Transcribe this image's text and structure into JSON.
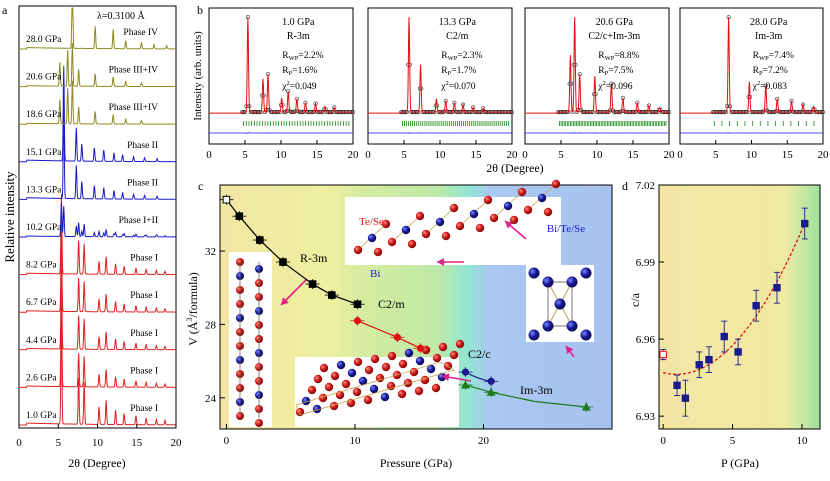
{
  "panel_labels": {
    "a": "a",
    "b": "b",
    "c": "c",
    "d": "d"
  },
  "colors": {
    "phase1": "#e02020",
    "phase2": "#1a1acc",
    "phase34": "#8f8a1e",
    "fit_red": "#e01010",
    "diff_blue": "#1a1aff",
    "tick_green": "#1a8a1a",
    "c_r3m": "#000000",
    "c_c2m": "#e01010",
    "c_c2c": "#1a1a8f",
    "c_im3m": "#1a7a1a",
    "d_points": "#1a1a8f",
    "d_fit": "#e01010"
  },
  "chart_data": [
    {
      "type": "line",
      "panel": "a",
      "xlabel": "2θ (Degree)",
      "ylabel": "Relative intensity",
      "xlim": [
        0,
        20
      ],
      "xticks": [
        "0",
        "5",
        "10",
        "15",
        "20"
      ],
      "annotation": "λ=0.3100 Å",
      "series": [
        {
          "pressure": "1.0 GPa",
          "phase": "Phase I"
        },
        {
          "pressure": "2.6 GPa",
          "phase": "Phase I"
        },
        {
          "pressure": "4.4 GPa",
          "phase": "Phase I"
        },
        {
          "pressure": "6.7 GPa",
          "phase": "Phase I"
        },
        {
          "pressure": "8.2 GPa",
          "phase": "Phase I"
        },
        {
          "pressure": "10.2 GPa",
          "phase": "Phase I+II"
        },
        {
          "pressure": "13.3 GPa",
          "phase": "Phase II"
        },
        {
          "pressure": "15.1 GPa",
          "phase": "Phase II"
        },
        {
          "pressure": "18.6 GPa",
          "phase": "Phase III+IV"
        },
        {
          "pressure": "20.6 GPa",
          "phase": "Phase III+IV"
        },
        {
          "pressure": "28.0 GPa",
          "phase": "Phase IV"
        }
      ]
    },
    {
      "type": "line",
      "panel": "b",
      "ylabel": "Intensity (arb. units)",
      "xlabel": "2θ (Degree)",
      "xlim": [
        0,
        20
      ],
      "xticks": [
        "0",
        "5",
        "10",
        "15",
        "20"
      ],
      "subplots": [
        {
          "pressure": "1.0 GPa",
          "phase": "R-3m",
          "rwp": "R",
          "rwp_sub": "WP",
          "rwp_val": "=2.2%",
          "rp": "R",
          "rp_sub": "P",
          "rp_val": "=1.6%",
          "chi": "χ",
          "chi_sup": "2",
          "chi_val": "=0.049"
        },
        {
          "pressure": "13.3 GPa",
          "phase": "C2/m",
          "rwp": "R",
          "rwp_sub": "WP",
          "rwp_val": "=2.3%",
          "rp": "R",
          "rp_sub": "P",
          "rp_val": "=1.7%",
          "chi": "χ",
          "chi_sup": "2",
          "chi_val": "=0.070"
        },
        {
          "pressure": "20.6 GPa",
          "phase": "C2/c+Im-3m",
          "rwp": "R",
          "rwp_sub": "WP",
          "rwp_val": "=8.8%",
          "rp": "R",
          "rp_sub": "P",
          "rp_val": "=7.5%",
          "chi": "χ",
          "chi_sup": "2",
          "chi_val": "=0.096"
        },
        {
          "pressure": "28.0 GPa",
          "phase": "Im-3m",
          "rwp": "R",
          "rwp_sub": "WP",
          "rwp_val": "=7.4%",
          "rp": "R",
          "rp_sub": "P",
          "rp_val": "=7.2%",
          "chi": "χ",
          "chi_sup": "2",
          "chi_val": "=0.083"
        }
      ]
    },
    {
      "type": "scatter",
      "panel": "c",
      "xlabel": "Pressure (GPa)",
      "ylabel_parts": [
        "V (Å",
        "3",
        "/formula)"
      ],
      "xlim": [
        -0.5,
        30
      ],
      "ylim": [
        22.3,
        35.6
      ],
      "xticks": [
        0,
        10,
        20
      ],
      "yticks": [
        24,
        28,
        32
      ],
      "annotations": {
        "te_se": "Te/Se",
        "bi": "Bi",
        "bi_te_se": "Bi/Te/Se"
      },
      "series": [
        {
          "name": "R-3m",
          "marker": "square",
          "x": [
            0.0,
            1.0,
            2.6,
            4.4,
            6.7,
            8.2,
            10.2
          ],
          "y": [
            34.8,
            33.9,
            32.6,
            31.4,
            30.2,
            29.6,
            29.1
          ],
          "fit": [
            [
              0,
              34.8
            ],
            [
              1,
              33.9
            ],
            [
              2.6,
              32.6
            ],
            [
              4.4,
              31.4
            ],
            [
              6.7,
              30.2
            ],
            [
              8.2,
              29.6
            ],
            [
              10.2,
              29.1
            ]
          ]
        },
        {
          "name": "C2/m",
          "marker": "circle",
          "x": [
            10.2,
            13.3,
            15.1
          ],
          "y": [
            28.2,
            27.3,
            26.7
          ],
          "fit": [
            [
              10.2,
              28.2
            ],
            [
              13.3,
              27.3
            ],
            [
              15.1,
              26.7
            ]
          ]
        },
        {
          "name": "C2/c",
          "marker": "circle",
          "x": [
            18.6,
            20.6
          ],
          "y": [
            25.4,
            24.9
          ],
          "fit": [
            [
              18.6,
              25.4
            ],
            [
              20.6,
              24.9
            ]
          ]
        },
        {
          "name": "Im-3m",
          "marker": "triangle",
          "x": [
            18.6,
            20.6,
            28.0
          ],
          "y": [
            24.7,
            24.3,
            23.5
          ],
          "fit": [
            [
              18.6,
              24.7
            ],
            [
              20.6,
              24.3
            ],
            [
              24,
              23.8
            ],
            [
              28,
              23.5
            ]
          ]
        }
      ]
    },
    {
      "type": "scatter",
      "panel": "d",
      "xlabel": "P (GPa)",
      "ylabel": "c/a",
      "xlim": [
        -0.3,
        11.3
      ],
      "ylim": [
        6.925,
        7.02
      ],
      "xticks": [
        0,
        5,
        10
      ],
      "yticks": [
        "6.93",
        "6.96",
        "6.99",
        "7.02"
      ],
      "series": [
        {
          "marker": "square",
          "x": [
            0.0,
            1.0,
            1.6,
            2.6,
            3.3,
            4.4,
            5.4,
            6.7,
            8.2,
            10.2
          ],
          "y": [
            6.954,
            6.942,
            6.937,
            6.95,
            6.952,
            6.961,
            6.955,
            6.973,
            6.98,
            7.005
          ],
          "yerr": [
            0.002,
            0.004,
            0.007,
            0.005,
            0.005,
            0.006,
            0.005,
            0.006,
            0.006,
            0.006
          ]
        }
      ]
    }
  ]
}
